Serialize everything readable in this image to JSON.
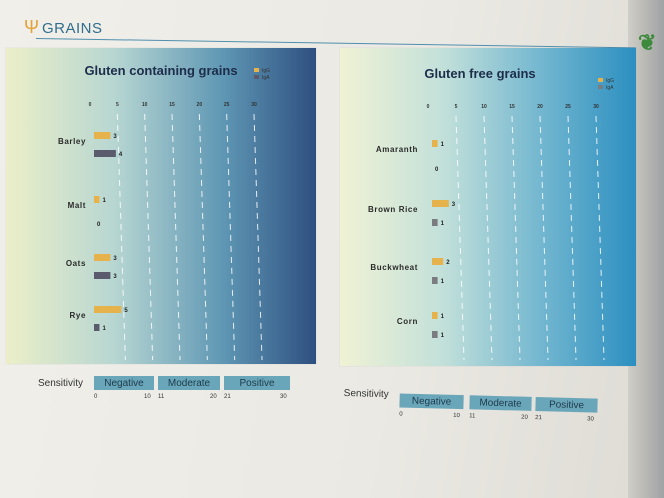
{
  "header": {
    "title": "GRAINS"
  },
  "panels": [
    {
      "title": "Gluten containing grains",
      "legend": [
        "IgG",
        "IgA"
      ]
    },
    {
      "title": "Gluten free grains",
      "legend": [
        "IgG",
        "IgA"
      ]
    }
  ],
  "chart_data": [
    {
      "type": "bar",
      "orientation": "horizontal",
      "title": "Gluten containing grains",
      "categories": [
        "Barley",
        "Malt",
        "Oats",
        "Rye"
      ],
      "series": [
        {
          "name": "IgG",
          "values": [
            3,
            1,
            3,
            5
          ],
          "color": "#e6b24c"
        },
        {
          "name": "IgA",
          "values": [
            4,
            0,
            3,
            1
          ],
          "color": "#5a5c6e"
        }
      ],
      "xticks": [
        "0",
        "5",
        "10",
        "15",
        "20",
        "25",
        "30"
      ],
      "xlim": [
        0,
        30
      ],
      "grid": true,
      "legend_position": "top-right"
    },
    {
      "type": "bar",
      "orientation": "horizontal",
      "title": "Gluten free grains",
      "categories": [
        "Amaranth",
        "Brown Rice",
        "Buckwheat",
        "Corn"
      ],
      "series": [
        {
          "name": "IgG",
          "values": [
            1,
            3,
            2,
            1
          ],
          "color": "#e6b24c"
        },
        {
          "name": "IgA",
          "values": [
            0,
            1,
            1,
            1
          ],
          "color": "#7a7c80"
        }
      ],
      "xticks": [
        "0",
        "5",
        "10",
        "15",
        "20",
        "25",
        "30"
      ],
      "xlim": [
        0,
        30
      ],
      "grid": true,
      "legend_position": "top-right"
    }
  ],
  "sensitivity": [
    {
      "label": "Sensitivity",
      "levels": [
        {
          "name": "Negative",
          "from": "0",
          "to": "10"
        },
        {
          "name": "Moderate",
          "from": "11",
          "to": "20"
        },
        {
          "name": "Positive",
          "from": "21",
          "to": "30"
        }
      ]
    },
    {
      "label": "Sensitivity",
      "levels": [
        {
          "name": "Negative",
          "from": "0",
          "to": "10"
        },
        {
          "name": "Moderate",
          "from": "11",
          "to": "20"
        },
        {
          "name": "Positive",
          "from": "21",
          "to": "30"
        }
      ]
    }
  ],
  "colors": {
    "accent": "#2f6e8c",
    "igg": "#e6b24c",
    "iga": "#5a5c6e",
    "sensitivity_box": "#6aa6ba"
  }
}
